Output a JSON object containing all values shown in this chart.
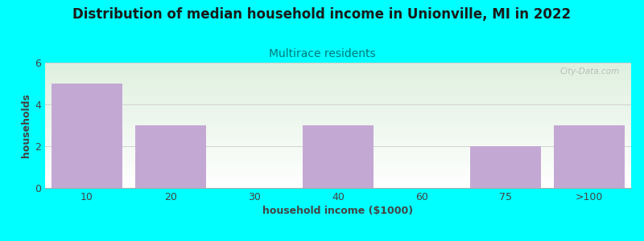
{
  "title": "Distribution of median household income in Unionville, MI in 2022",
  "subtitle": "Multirace residents",
  "xlabel": "household income ($1000)",
  "ylabel": "households",
  "categories": [
    "10",
    "20",
    "30",
    "40",
    "60",
    "75",
    ">100"
  ],
  "values": [
    5,
    3,
    0,
    3,
    0,
    2,
    3
  ],
  "bar_color": "#c4a8d4",
  "background_color": "#00ffff",
  "plot_bg_color": "#e8f5e8",
  "title_color": "#1a1a1a",
  "subtitle_color": "#007a7a",
  "axis_label_color": "#444444",
  "tick_color": "#444444",
  "ylim": [
    0,
    6
  ],
  "yticks": [
    0,
    2,
    4,
    6
  ],
  "grid_color": "#cccccc",
  "watermark": "City-Data.com",
  "title_fontsize": 12,
  "subtitle_fontsize": 10,
  "label_fontsize": 9,
  "tick_fontsize": 9
}
